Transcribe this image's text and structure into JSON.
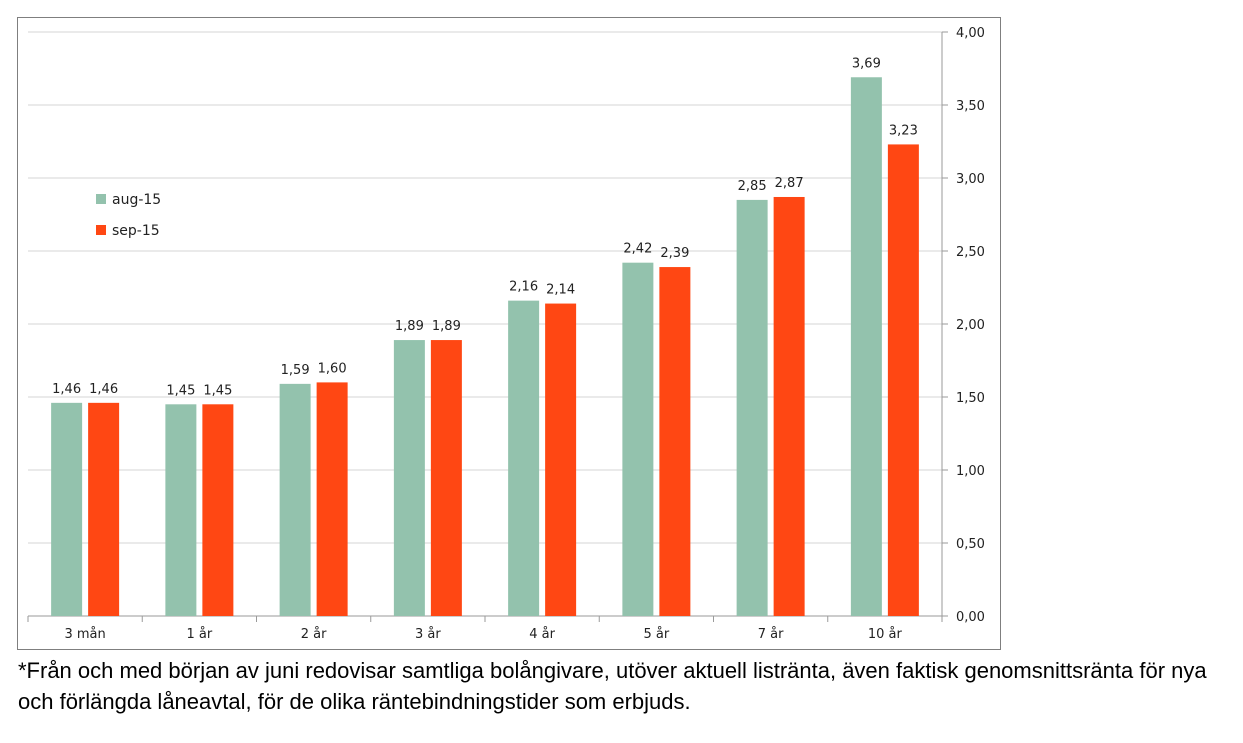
{
  "chart_data": {
    "type": "bar",
    "categories": [
      "3 mån",
      "1 år",
      "2 år",
      "3 år",
      "4 år",
      "5 år",
      "7 år",
      "10 år"
    ],
    "series": [
      {
        "name": "aug-15",
        "values": [
          1.46,
          1.45,
          1.59,
          1.89,
          2.16,
          2.42,
          2.85,
          3.69
        ],
        "labels": [
          "1,46",
          "1,45",
          "1,59",
          "1,89",
          "2,16",
          "2,42",
          "2,85",
          "3,69"
        ],
        "color": "#93c2ad"
      },
      {
        "name": "sep-15",
        "values": [
          1.46,
          1.45,
          1.6,
          1.89,
          2.14,
          2.39,
          2.87,
          3.23
        ],
        "labels": [
          "1,46",
          "1,45",
          "1,60",
          "1,89",
          "2,14",
          "2,39",
          "2,87",
          "3,23"
        ],
        "color": "#ff4713"
      }
    ],
    "ylim": [
      0,
      4
    ],
    "yticks": [
      "0,00",
      "0,50",
      "1,00",
      "1,50",
      "2,00",
      "2,50",
      "3,00",
      "3,50",
      "4,00"
    ],
    "y_axis_side": "right",
    "grid": true,
    "legend_position": "left"
  },
  "footnote": "*Från och med början av juni redovisar samtliga bolångivare, utöver aktuell listränta, även faktisk genomsnittsränta för nya och förlängda låneavtal, för de olika räntebindningstider som erbjuds."
}
